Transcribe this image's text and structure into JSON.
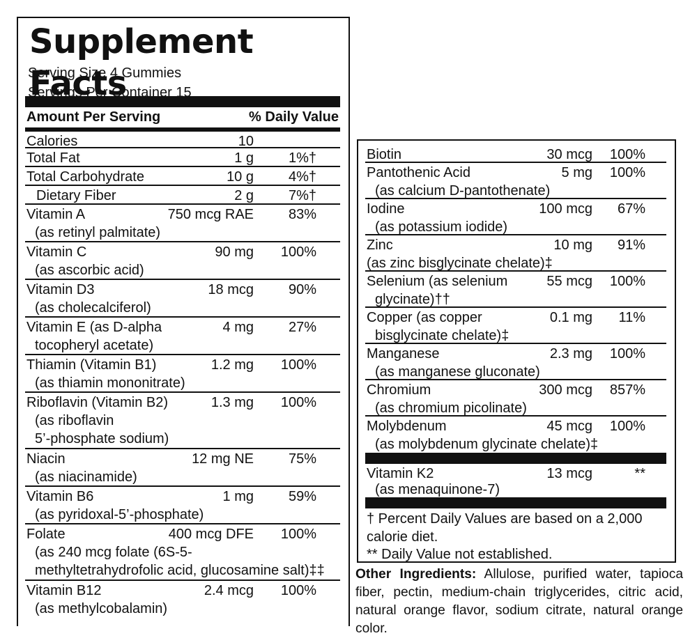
{
  "title": "Supplement Facts",
  "serving_size": "Serving Size 4 Gummies",
  "servings_per_container": "Servings Per Container 15",
  "header": {
    "amount": "Amount Per Serving",
    "daily_value": "% Daily Value"
  },
  "left_rows": [
    {
      "name": "Calories",
      "amount": "10",
      "dv": "",
      "sub": []
    },
    {
      "name": "Total Fat",
      "amount": "1 g",
      "dv": "1%†",
      "sub": []
    },
    {
      "name": "Total Carbohydrate",
      "amount": "10 g",
      "dv": "4%†",
      "sub": []
    },
    {
      "name": "Dietary Fiber",
      "amount": "2 g",
      "dv": "7%†",
      "sub": [],
      "indent": true
    },
    {
      "name": "Vitamin A",
      "amount": "750 mcg RAE",
      "dv": "83%",
      "sub": [
        "(as retinyl palmitate)"
      ]
    },
    {
      "name": "Vitamin C",
      "amount": "90 mg",
      "dv": "100%",
      "sub": [
        "(as ascorbic acid)"
      ]
    },
    {
      "name": "Vitamin D3",
      "amount": "18 mcg",
      "dv": "90%",
      "sub": [
        "(as cholecalciferol)"
      ]
    },
    {
      "name": "Vitamin E (as D-alpha",
      "amount": "4 mg",
      "dv": "27%",
      "sub": [
        "tocopheryl acetate)"
      ]
    },
    {
      "name": "Thiamin (Vitamin B1)",
      "amount": "1.2 mg",
      "dv": "100%",
      "sub": [
        "(as thiamin mononitrate)"
      ]
    },
    {
      "name": "Riboflavin (Vitamin B2)",
      "amount": "1.3 mg",
      "dv": "100%",
      "sub": [
        "(as riboflavin",
        "5’-phosphate sodium)"
      ]
    },
    {
      "name": "Niacin",
      "amount": "12 mg NE",
      "dv": "75%",
      "sub": [
        "(as niacinamide)"
      ]
    },
    {
      "name": "Vitamin B6",
      "amount": "1 mg",
      "dv": "59%",
      "sub": [
        "(as pyridoxal-5’-phosphate)"
      ]
    },
    {
      "name": "Folate",
      "amount": "400 mcg DFE",
      "dv": "100%",
      "sub": [
        "(as 240 mcg folate (6S-5-",
        "methyltetrahydrofolic acid, glucosamine salt)‡‡"
      ]
    },
    {
      "name": "Vitamin B12",
      "amount": "2.4 mcg",
      "dv": "100%",
      "sub": [
        "(as methylcobalamin)"
      ]
    }
  ],
  "right_rows": [
    {
      "name": "Biotin",
      "amount": "30 mcg",
      "dv": "100%",
      "sub": []
    },
    {
      "name": "Pantothenic Acid",
      "amount": "5 mg",
      "dv": "100%",
      "sub": [
        "(as calcium D-pantothenate)"
      ]
    },
    {
      "name": "Iodine",
      "amount": "100 mcg",
      "dv": "67%",
      "sub": [
        "(as potassium iodide)"
      ]
    },
    {
      "name": "Zinc",
      "amount": "10 mg",
      "dv": "91%",
      "sub": [
        "(as zinc bisglycinate chelate)‡"
      ],
      "flush": true
    },
    {
      "name": "Selenium (as selenium",
      "amount": "55 mcg",
      "dv": "100%",
      "sub": [
        "glycinate)††"
      ]
    },
    {
      "name": "Copper (as copper",
      "amount": "0.1 mg",
      "dv": "11%",
      "sub": [
        "bisglycinate chelate)‡"
      ]
    },
    {
      "name": "Manganese",
      "amount": "2.3 mg",
      "dv": "100%",
      "sub": [
        "(as manganese gluconate)"
      ]
    },
    {
      "name": "Chromium",
      "amount": "300 mcg",
      "dv": "857%",
      "sub": [
        "(as chromium picolinate)"
      ]
    },
    {
      "name": "Molybdenum",
      "amount": "45 mcg",
      "dv": "100%",
      "sub": [
        "(as molybdenum glycinate chelate)‡"
      ]
    }
  ],
  "vitamin_k2": {
    "name": "Vitamin K2",
    "amount": "13 mcg",
    "dv": "**",
    "sub": [
      "(as menaquinone-7)"
    ]
  },
  "footnotes": [
    "† Percent Daily Values are based on a 2,000",
    "calorie diet.",
    "** Daily Value not established."
  ],
  "other_ingredients": {
    "label": "Other Ingredients:",
    "text": "Allulose, purified water, tapioca fiber, pectin, medium-chain triglycerides, citric acid, natural orange flavor, sodium citrate, natural orange color."
  }
}
